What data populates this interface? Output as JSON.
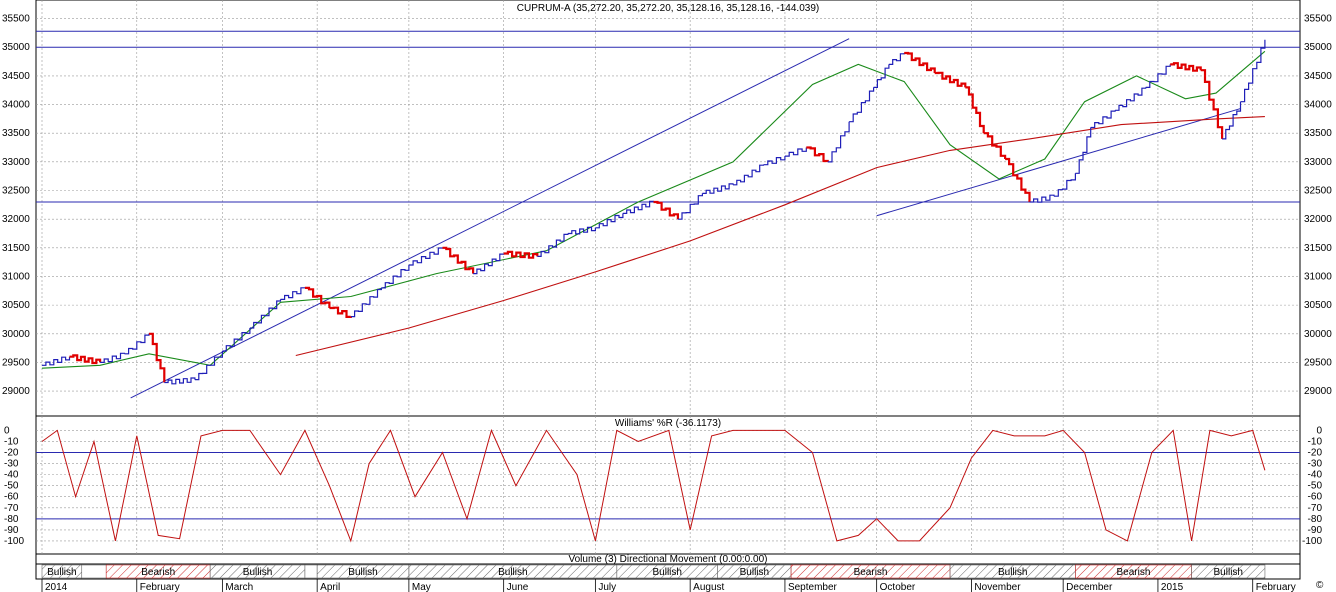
{
  "chart_data": [
    {
      "type": "line",
      "title": "CUPRUM-A (35,272.20, 35,272.20, 35,128.16, 35,128.16, -144.039)",
      "ylim": [
        28600,
        35650
      ],
      "y_ticks": [
        29000,
        29500,
        30000,
        30500,
        31000,
        31500,
        32000,
        32500,
        33000,
        33500,
        34000,
        34500,
        35000,
        35500
      ],
      "grid": true,
      "horizontal_lines": [
        35280,
        35000,
        32300
      ],
      "trendlines": [
        {
          "from": [
            "2014-01-30",
            28880
          ],
          "to": [
            "2014-09-22",
            35150
          ]
        },
        {
          "from": [
            "2014-10-01",
            32060
          ],
          "to": [
            "2015-01-28",
            33930
          ]
        }
      ],
      "series": [
        {
          "kind": "price",
          "x": [
            "2014-01-01",
            "2014-01-10",
            "2014-01-20",
            "2014-01-28",
            "2014-02-05",
            "2014-02-10",
            "2014-02-20",
            "2014-03-01",
            "2014-03-10",
            "2014-03-20",
            "2014-03-28",
            "2014-04-05",
            "2014-04-12",
            "2014-04-22",
            "2014-05-01",
            "2014-05-12",
            "2014-05-22",
            "2014-06-01",
            "2014-06-12",
            "2014-06-22",
            "2014-07-01",
            "2014-07-10",
            "2014-07-20",
            "2014-07-28",
            "2014-08-05",
            "2014-08-15",
            "2014-08-25",
            "2014-09-01",
            "2014-09-08",
            "2014-09-15",
            "2014-09-22",
            "2014-09-30",
            "2014-10-05",
            "2014-10-10",
            "2014-10-20",
            "2014-10-30",
            "2014-11-05",
            "2014-11-12",
            "2014-11-20",
            "2014-11-28",
            "2014-12-05",
            "2014-12-10",
            "2014-12-18",
            "2014-12-28",
            "2015-01-05",
            "2015-01-15",
            "2015-01-22",
            "2015-01-28",
            "2015-02-05"
          ],
          "y": [
            29450,
            29600,
            29500,
            29650,
            30000,
            29150,
            29200,
            29700,
            30100,
            30600,
            30800,
            30450,
            30300,
            30800,
            31200,
            31500,
            31050,
            31400,
            31350,
            31750,
            31850,
            32100,
            32300,
            32000,
            32450,
            32600,
            32950,
            33100,
            33250,
            33000,
            33700,
            34300,
            34700,
            34900,
            34550,
            34300,
            33500,
            33050,
            32300,
            32400,
            32800,
            33600,
            33900,
            34300,
            34700,
            34600,
            33400,
            34050,
            35130
          ]
        },
        {
          "kind": "moving-average-short",
          "color": "#1a8a1a",
          "x": [
            "2014-01-01",
            "2014-01-20",
            "2014-02-05",
            "2014-02-25",
            "2014-03-20",
            "2014-04-12",
            "2014-05-10",
            "2014-06-15",
            "2014-07-15",
            "2014-08-15",
            "2014-09-10",
            "2014-09-25",
            "2014-10-10",
            "2014-10-25",
            "2014-11-10",
            "2014-11-25",
            "2014-12-08",
            "2014-12-25",
            "2015-01-10",
            "2015-01-20",
            "2015-02-05"
          ],
          "y": [
            29400,
            29450,
            29650,
            29450,
            30550,
            30650,
            31050,
            31450,
            32300,
            33000,
            34350,
            34700,
            34400,
            33300,
            32700,
            33050,
            34050,
            34500,
            34100,
            34200,
            34930
          ]
        },
        {
          "kind": "moving-average-long",
          "color": "#c01010",
          "x": [
            "2014-03-25",
            "2014-05-01",
            "2014-06-01",
            "2014-07-01",
            "2014-08-01",
            "2014-09-01",
            "2014-10-01",
            "2014-10-25",
            "2014-11-20",
            "2014-12-20",
            "2015-01-20",
            "2015-02-05"
          ],
          "y": [
            29620,
            30100,
            30580,
            31080,
            31620,
            32250,
            32900,
            33200,
            33400,
            33650,
            33750,
            33790
          ]
        }
      ]
    },
    {
      "type": "line",
      "title": "Williams' %R (-36.1173)",
      "ylim": [
        -110,
        4
      ],
      "y_ticks": [
        0,
        -10,
        -20,
        -30,
        -40,
        -50,
        -60,
        -70,
        -80,
        -90,
        -100
      ],
      "horizontal_lines": [
        -20,
        -80
      ],
      "series": [
        {
          "kind": "williams-r",
          "color": "#c01010",
          "x": [
            "2014-01-01",
            "2014-01-06",
            "2014-01-12",
            "2014-01-18",
            "2014-01-25",
            "2014-02-01",
            "2014-02-08",
            "2014-02-15",
            "2014-02-22",
            "2014-03-01",
            "2014-03-10",
            "2014-03-20",
            "2014-03-28",
            "2014-04-05",
            "2014-04-12",
            "2014-04-18",
            "2014-04-25",
            "2014-05-03",
            "2014-05-12",
            "2014-05-20",
            "2014-05-28",
            "2014-06-05",
            "2014-06-15",
            "2014-06-25",
            "2014-07-01",
            "2014-07-08",
            "2014-07-15",
            "2014-07-25",
            "2014-08-01",
            "2014-08-08",
            "2014-08-15",
            "2014-08-25",
            "2014-09-01",
            "2014-09-10",
            "2014-09-18",
            "2014-09-25",
            "2014-10-01",
            "2014-10-08",
            "2014-10-15",
            "2014-10-25",
            "2014-11-01",
            "2014-11-08",
            "2014-11-15",
            "2014-11-25",
            "2014-12-01",
            "2014-12-08",
            "2014-12-15",
            "2014-12-22",
            "2014-12-30",
            "2015-01-06",
            "2015-01-12",
            "2015-01-18",
            "2015-01-25",
            "2015-02-01",
            "2015-02-05"
          ],
          "y": [
            -10,
            0,
            -60,
            -10,
            -100,
            -5,
            -95,
            -98,
            -5,
            0,
            0,
            -40,
            0,
            -50,
            -100,
            -30,
            0,
            -60,
            -20,
            -80,
            0,
            -50,
            0,
            -40,
            -100,
            0,
            -10,
            0,
            -90,
            -5,
            0,
            0,
            0,
            -20,
            -100,
            -95,
            -80,
            -100,
            -100,
            -70,
            -25,
            0,
            -5,
            -5,
            0,
            -20,
            -90,
            -100,
            -20,
            0,
            -100,
            0,
            -5,
            0,
            -36.1173
          ]
        }
      ]
    },
    {
      "type": "bar",
      "title": "Volume (3) Directional Movement (0.00:0.00)",
      "series": []
    }
  ],
  "regimes": [
    {
      "label": "Bullish",
      "from": "2014-01-01",
      "to": "2014-01-14",
      "state": "bullish"
    },
    {
      "label": "",
      "from": "2014-01-14",
      "to": "2014-01-22",
      "state": "neutral"
    },
    {
      "label": "Bearish",
      "from": "2014-01-22",
      "to": "2014-02-25",
      "state": "bearish"
    },
    {
      "label": "Bullish",
      "from": "2014-02-25",
      "to": "2014-03-28",
      "state": "bullish"
    },
    {
      "label": "",
      "from": "2014-03-28",
      "to": "2014-04-01",
      "state": "neutral"
    },
    {
      "label": "Bullish",
      "from": "2014-04-01",
      "to": "2014-05-01",
      "state": "bullish"
    },
    {
      "label": "Bullish",
      "from": "2014-05-01",
      "to": "2014-07-08",
      "state": "bullish"
    },
    {
      "label": "Bullish",
      "from": "2014-07-08",
      "to": "2014-08-10",
      "state": "bullish"
    },
    {
      "label": "Bullish",
      "from": "2014-08-10",
      "to": "2014-09-03",
      "state": "bullish"
    },
    {
      "label": "Bearish",
      "from": "2014-09-03",
      "to": "2014-10-25",
      "state": "bearish"
    },
    {
      "label": "Bullish",
      "from": "2014-10-25",
      "to": "2014-12-05",
      "state": "bullish"
    },
    {
      "label": "Bearish",
      "from": "2014-12-05",
      "to": "2015-01-12",
      "state": "bearish"
    },
    {
      "label": "Bullish",
      "from": "2015-01-12",
      "to": "2015-02-05",
      "state": "bullish"
    }
  ],
  "x_axis_labels": [
    {
      "label": "2014",
      "date": "2014-01-01"
    },
    {
      "label": "February",
      "date": "2014-02-01"
    },
    {
      "label": "March",
      "date": "2014-03-01"
    },
    {
      "label": "April",
      "date": "2014-04-01"
    },
    {
      "label": "May",
      "date": "2014-05-01"
    },
    {
      "label": "June",
      "date": "2014-06-01"
    },
    {
      "label": "July",
      "date": "2014-07-01"
    },
    {
      "label": "August",
      "date": "2014-08-01"
    },
    {
      "label": "September",
      "date": "2014-09-01"
    },
    {
      "label": "October",
      "date": "2014-10-01"
    },
    {
      "label": "November",
      "date": "2014-11-01"
    },
    {
      "label": "December",
      "date": "2014-12-01"
    },
    {
      "label": "2015",
      "date": "2015-01-01"
    },
    {
      "label": "February",
      "date": "2015-02-01"
    }
  ],
  "colors": {
    "price_up": "#1f1fb8",
    "price_down": "#e00000",
    "line_blue": "#2a2ab0",
    "grid": "#9a9a9a",
    "marker_up": "#2244dd",
    "marker_down": "#a0522d",
    "hatch_bullish": "#6a6a6a",
    "hatch_bearish": "#d03030"
  }
}
